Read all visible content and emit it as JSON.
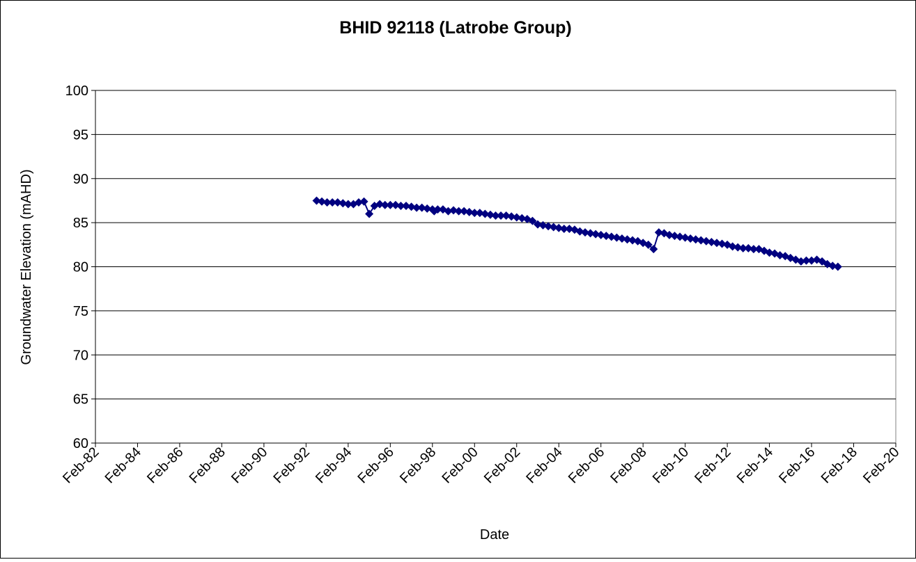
{
  "chart_data": {
    "type": "line",
    "title": "BHID 92118 (Latrobe Group)",
    "x_label": "Date",
    "y_label": "Groundwater Elevation  (mAHD)",
    "x": [
      "1992-08",
      "1992-11",
      "1993-02",
      "1993-05",
      "1993-08",
      "1993-11",
      "1994-02",
      "1994-05",
      "1994-08",
      "1994-11",
      "1995-02",
      "1995-05",
      "1995-08",
      "1995-11",
      "1996-02",
      "1996-05",
      "1996-08",
      "1996-11",
      "1997-02",
      "1997-05",
      "1997-08",
      "1997-11",
      "1998-02",
      "1998-03",
      "1998-05",
      "1998-08",
      "1998-11",
      "1999-02",
      "1999-05",
      "1999-08",
      "1999-11",
      "2000-02",
      "2000-05",
      "2000-08",
      "2000-11",
      "2001-02",
      "2001-05",
      "2001-08",
      "2001-11",
      "2002-02",
      "2002-05",
      "2002-08",
      "2002-11",
      "2003-02",
      "2003-05",
      "2003-08",
      "2003-11",
      "2004-02",
      "2004-05",
      "2004-08",
      "2004-11",
      "2005-02",
      "2005-05",
      "2005-08",
      "2005-11",
      "2006-02",
      "2006-05",
      "2006-08",
      "2006-11",
      "2007-02",
      "2007-05",
      "2007-08",
      "2007-11",
      "2008-02",
      "2008-05",
      "2008-08",
      "2008-11",
      "2009-02",
      "2009-05",
      "2009-08",
      "2009-11",
      "2010-02",
      "2010-05",
      "2010-08",
      "2010-11",
      "2011-02",
      "2011-05",
      "2011-08",
      "2011-11",
      "2012-02",
      "2012-05",
      "2012-08",
      "2012-11",
      "2013-02",
      "2013-05",
      "2013-08",
      "2013-11",
      "2014-02",
      "2014-05",
      "2014-08",
      "2014-11",
      "2015-02",
      "2015-05",
      "2015-08",
      "2015-11",
      "2016-02",
      "2016-05",
      "2016-08",
      "2016-11",
      "2017-02",
      "2017-05"
    ],
    "series": [
      {
        "color": "#000080",
        "values": [
          87.5,
          87.4,
          87.3,
          87.3,
          87.3,
          87.2,
          87.1,
          87.1,
          87.3,
          87.4,
          86.0,
          86.9,
          87.1,
          87.0,
          87.0,
          87.0,
          86.9,
          86.9,
          86.8,
          86.7,
          86.7,
          86.6,
          86.5,
          86.3,
          86.5,
          86.5,
          86.3,
          86.4,
          86.3,
          86.3,
          86.2,
          86.1,
          86.1,
          86.0,
          85.9,
          85.8,
          85.8,
          85.8,
          85.7,
          85.6,
          85.5,
          85.4,
          85.2,
          84.8,
          84.7,
          84.6,
          84.5,
          84.4,
          84.3,
          84.3,
          84.2,
          84.0,
          83.9,
          83.8,
          83.7,
          83.6,
          83.5,
          83.4,
          83.3,
          83.2,
          83.1,
          83.0,
          82.9,
          82.7,
          82.5,
          82.0,
          83.9,
          83.8,
          83.6,
          83.5,
          83.4,
          83.3,
          83.2,
          83.1,
          83.0,
          82.9,
          82.8,
          82.7,
          82.6,
          82.5,
          82.3,
          82.2,
          82.1,
          82.1,
          82.0,
          82.0,
          81.8,
          81.6,
          81.5,
          81.3,
          81.2,
          81.0,
          80.8,
          80.6,
          80.7,
          80.7,
          80.8,
          80.6,
          80.3,
          80.1,
          80.0
        ]
      }
    ],
    "xlim": [
      "1982-02",
      "2020-02"
    ],
    "xticks": [
      {
        "value": "1982-02",
        "label": "Feb-82"
      },
      {
        "value": "1984-02",
        "label": "Feb-84"
      },
      {
        "value": "1986-02",
        "label": "Feb-86"
      },
      {
        "value": "1988-02",
        "label": "Feb-88"
      },
      {
        "value": "1990-02",
        "label": "Feb-90"
      },
      {
        "value": "1992-02",
        "label": "Feb-92"
      },
      {
        "value": "1994-02",
        "label": "Feb-94"
      },
      {
        "value": "1996-02",
        "label": "Feb-96"
      },
      {
        "value": "1998-02",
        "label": "Feb-98"
      },
      {
        "value": "2000-02",
        "label": "Feb-00"
      },
      {
        "value": "2002-02",
        "label": "Feb-02"
      },
      {
        "value": "2004-02",
        "label": "Feb-04"
      },
      {
        "value": "2006-02",
        "label": "Feb-06"
      },
      {
        "value": "2008-02",
        "label": "Feb-08"
      },
      {
        "value": "2010-02",
        "label": "Feb-10"
      },
      {
        "value": "2012-02",
        "label": "Feb-12"
      },
      {
        "value": "2014-02",
        "label": "Feb-14"
      },
      {
        "value": "2016-02",
        "label": "Feb-16"
      },
      {
        "value": "2018-02",
        "label": "Feb-18"
      },
      {
        "value": "2020-02",
        "label": "Feb-20"
      }
    ],
    "ylim": [
      60,
      100
    ],
    "yticks": [
      60,
      65,
      70,
      75,
      80,
      85,
      90,
      95,
      100
    ],
    "grid": true
  }
}
